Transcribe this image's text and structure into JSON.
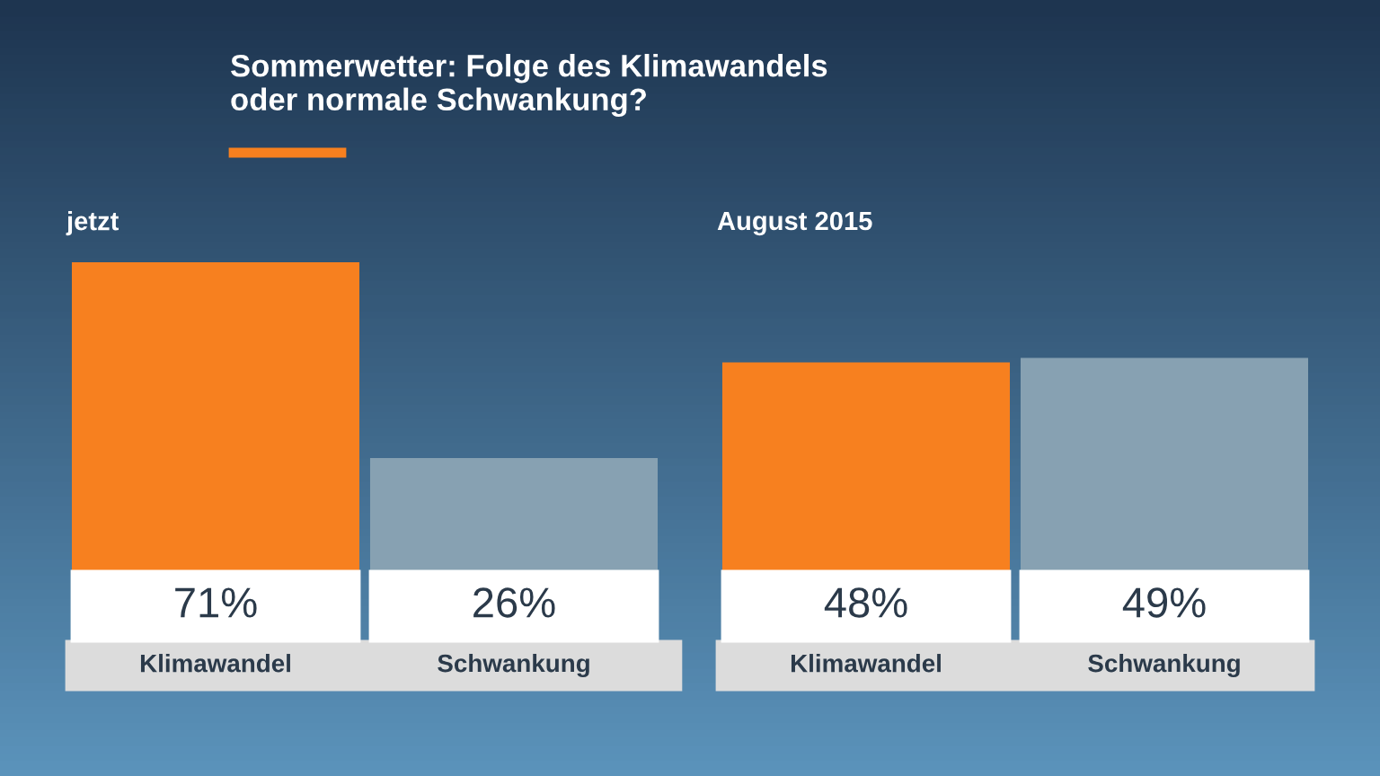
{
  "chart_data": [
    {
      "type": "bar",
      "title": "jetzt",
      "categories": [
        "Klimawandel",
        "Schwankung"
      ],
      "values": [
        71,
        26
      ],
      "colors": [
        "#f7801f",
        "#87a1b2"
      ],
      "value_labels": [
        "71%",
        "26%"
      ]
    },
    {
      "type": "bar",
      "title": "August 2015",
      "categories": [
        "Klimawandel",
        "Schwankung"
      ],
      "values": [
        48,
        49
      ],
      "colors": [
        "#f7801f",
        "#87a1b2"
      ],
      "value_labels": [
        "48%",
        "49%"
      ],
      "annotations": [
        "Sommerwetter: Folge des Klimawandels\noder normale Schwankung?"
      ]
    }
  ]
}
